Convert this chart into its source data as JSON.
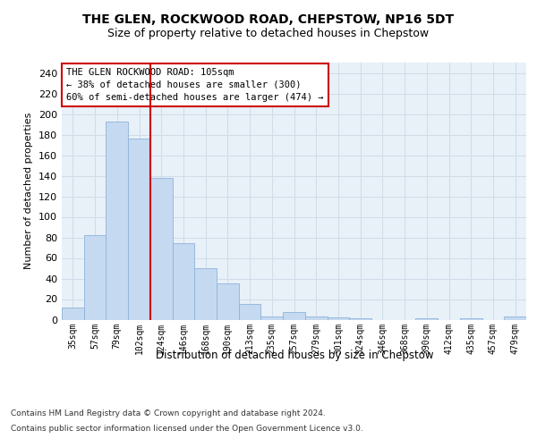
{
  "title": "THE GLEN, ROCKWOOD ROAD, CHEPSTOW, NP16 5DT",
  "subtitle": "Size of property relative to detached houses in Chepstow",
  "xlabel": "Distribution of detached houses by size in Chepstow",
  "ylabel": "Number of detached properties",
  "categories": [
    "35sqm",
    "57sqm",
    "79sqm",
    "102sqm",
    "124sqm",
    "146sqm",
    "168sqm",
    "190sqm",
    "213sqm",
    "235sqm",
    "257sqm",
    "279sqm",
    "301sqm",
    "324sqm",
    "346sqm",
    "368sqm",
    "390sqm",
    "412sqm",
    "435sqm",
    "457sqm",
    "479sqm"
  ],
  "values": [
    12,
    82,
    193,
    176,
    138,
    74,
    50,
    35,
    15,
    3,
    7,
    3,
    2,
    1,
    0,
    0,
    1,
    0,
    1,
    0,
    3
  ],
  "bar_color": "#c5d9f0",
  "bar_edge_color": "#8fb4d9",
  "vline_x": 3.5,
  "vline_color": "#cc0000",
  "annotation_text": "THE GLEN ROCKWOOD ROAD: 105sqm\n← 38% of detached houses are smaller (300)\n60% of semi-detached houses are larger (474) →",
  "annotation_box_color": "#ffffff",
  "annotation_box_edge": "#cc0000",
  "grid_color": "#d0dce8",
  "background_color": "#e8f0f8",
  "ylim": [
    0,
    250
  ],
  "yticks": [
    0,
    20,
    40,
    60,
    80,
    100,
    120,
    140,
    160,
    180,
    200,
    220,
    240
  ],
  "footer_line1": "Contains HM Land Registry data © Crown copyright and database right 2024.",
  "footer_line2": "Contains public sector information licensed under the Open Government Licence v3.0."
}
